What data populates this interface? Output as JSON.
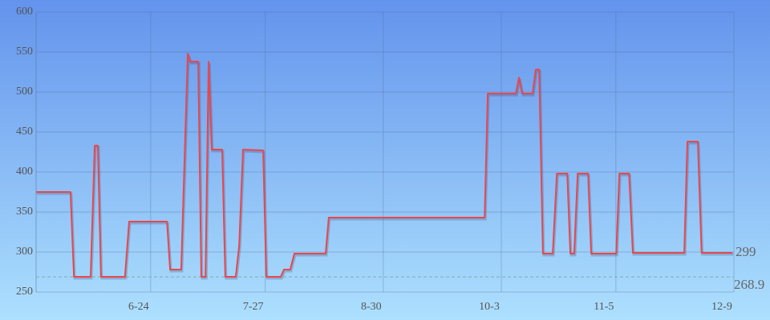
{
  "chart_data": {
    "type": "line",
    "x": [
      0,
      9.9,
      10.9,
      15.7,
      16.9,
      17.8,
      18.7,
      25.6,
      26.8,
      37.7,
      38.6,
      41.8,
      43.7,
      44.4,
      46.7,
      47.6,
      48.8,
      49.7,
      50.6,
      53.6,
      54.5,
      57.5,
      58.5,
      59.6,
      65.4,
      66.3,
      70.5,
      71.4,
      73.2,
      74.4,
      83.4,
      84.3,
      129.2,
      130.1,
      138.2,
      139.1,
      140.0,
      143.0,
      143.9,
      144.9,
      146.0,
      148.8,
      150.0,
      153.0,
      153.9,
      155.0,
      156.0,
      159.0,
      159.9,
      167.1,
      168.0,
      170.8,
      171.9,
      186.7,
      187.6,
      190.6,
      191.7,
      200.6
    ],
    "values": [
      375,
      375,
      269,
      269,
      433,
      433,
      269,
      269,
      338,
      338,
      278,
      278,
      548,
      538,
      538,
      269,
      269,
      538,
      428,
      428,
      269,
      269,
      308,
      428,
      427,
      269,
      269,
      278,
      278,
      298,
      298,
      343,
      343,
      498,
      498,
      518,
      498,
      498,
      528,
      528,
      298,
      298,
      398,
      398,
      298,
      298,
      398,
      398,
      298,
      298,
      398,
      398,
      299,
      299,
      438,
      438,
      299,
      299
    ],
    "color": "#e8474c",
    "xlim": [
      0,
      201
    ],
    "xticks": [
      {
        "value": 33,
        "label": "6-24"
      },
      {
        "value": 66,
        "label": "7-27"
      },
      {
        "value": 100,
        "label": "8-30"
      },
      {
        "value": 134,
        "label": "10-3"
      },
      {
        "value": 167,
        "label": "11-5"
      },
      {
        "value": 201,
        "label": "12-9"
      }
    ],
    "ylim": [
      250,
      600
    ],
    "yticks": [
      250,
      300,
      350,
      400,
      450,
      500,
      550,
      600
    ],
    "reference_line": 268.9,
    "grid": true
  }
}
